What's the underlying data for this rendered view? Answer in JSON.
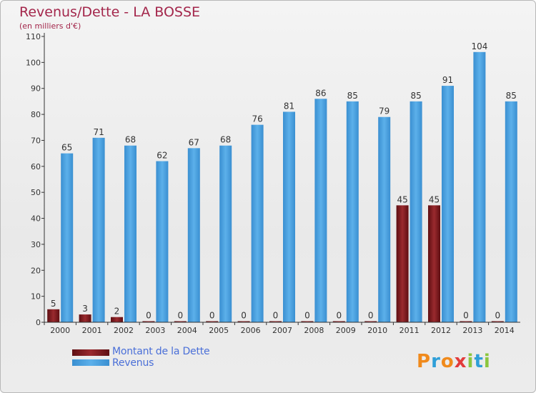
{
  "title": "Revenus/Dette - LA BOSSE",
  "subtitle": "(en milliers d'€)",
  "logo": "Proxiti",
  "colors": {
    "title": "#a3264b",
    "revenus": "#4da3e0",
    "dette": "#7a1a1e",
    "legend_text": "#4a6fd8"
  },
  "chart_data": {
    "type": "bar",
    "categories": [
      "2000",
      "2001",
      "2002",
      "2003",
      "2004",
      "2005",
      "2006",
      "2007",
      "2008",
      "2009",
      "2010",
      "2011",
      "2012",
      "2013",
      "2014"
    ],
    "series": [
      {
        "name": "Montant de la Dette",
        "values": [
          5,
          3,
          2,
          0,
          0,
          0,
          0,
          0,
          0,
          0,
          0,
          45,
          45,
          0,
          0
        ]
      },
      {
        "name": "Revenus",
        "values": [
          65,
          71,
          68,
          62,
          67,
          68,
          76,
          81,
          86,
          85,
          79,
          85,
          91,
          104,
          85
        ]
      }
    ],
    "ylim": [
      0,
      110
    ],
    "yticks": [
      0,
      10,
      20,
      30,
      40,
      50,
      60,
      70,
      80,
      90,
      100,
      110
    ],
    "grid": false,
    "legend_position": "bottom-left"
  }
}
